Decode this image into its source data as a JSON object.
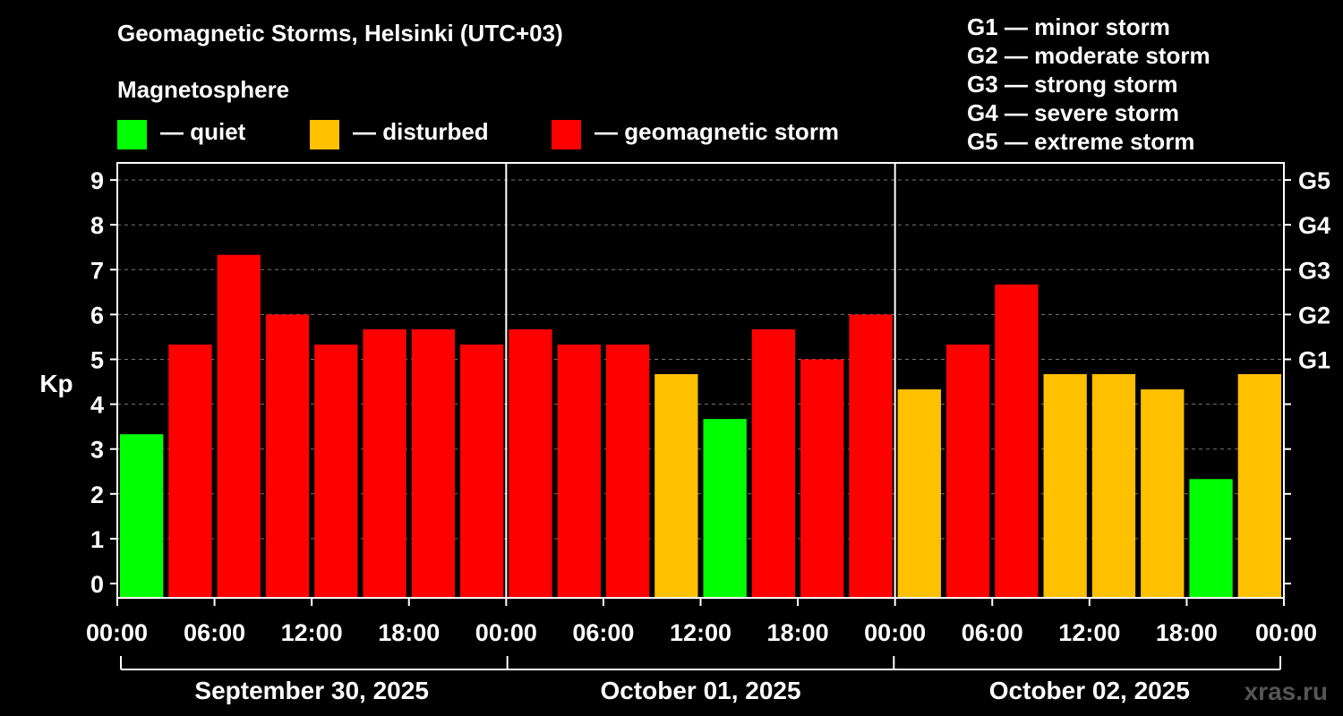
{
  "title": "Geomagnetic Storms, Helsinki (UTC+03)",
  "subtitle": "Magnetosphere",
  "legend": [
    {
      "label": "— quiet",
      "color": "#00ff00"
    },
    {
      "label": "— disturbed",
      "color": "#ffc000"
    },
    {
      "label": "— geomagnetic storm",
      "color": "#ff0000"
    }
  ],
  "storm_scale": [
    "G1 — minor storm",
    "G2 — moderate storm",
    "G3 — strong storm",
    "G4 — severe storm",
    "G5 — extreme storm"
  ],
  "watermark": "xras.ru",
  "chart_data": {
    "type": "bar",
    "title": "Geomagnetic Storms, Helsinki (UTC+03)",
    "ylabel": "Kp",
    "ylim": [
      0,
      9
    ],
    "yticks": [
      "0",
      "1",
      "2",
      "3",
      "4",
      "5",
      "6",
      "7",
      "8",
      "9"
    ],
    "right_axis_ticks": [
      {
        "value": 5,
        "label": "G1"
      },
      {
        "value": 6,
        "label": "G2"
      },
      {
        "value": 7,
        "label": "G3"
      },
      {
        "value": 8,
        "label": "G4"
      },
      {
        "value": 9,
        "label": "G5"
      }
    ],
    "xtick_labels": [
      "00:00",
      "06:00",
      "12:00",
      "18:00",
      "00:00",
      "06:00",
      "12:00",
      "18:00",
      "00:00",
      "06:00",
      "12:00",
      "18:00",
      "00:00"
    ],
    "days": [
      "September 30, 2025",
      "October 01, 2025",
      "October 02, 2025"
    ],
    "grid": true,
    "values": [
      3.33,
      5.33,
      7.33,
      6.0,
      5.33,
      5.67,
      5.67,
      5.33,
      5.67,
      5.33,
      5.33,
      4.67,
      3.67,
      5.67,
      5.0,
      6.0,
      4.33,
      5.33,
      6.67,
      4.67,
      4.67,
      4.33,
      2.33,
      4.67
    ],
    "colors": [
      "#00ff00",
      "#ff0000",
      "#ff0000",
      "#ff0000",
      "#ff0000",
      "#ff0000",
      "#ff0000",
      "#ff0000",
      "#ff0000",
      "#ff0000",
      "#ff0000",
      "#ffc000",
      "#00ff00",
      "#ff0000",
      "#ff0000",
      "#ff0000",
      "#ffc000",
      "#ff0000",
      "#ff0000",
      "#ffc000",
      "#ffc000",
      "#ffc000",
      "#00ff00",
      "#ffc000"
    ]
  }
}
